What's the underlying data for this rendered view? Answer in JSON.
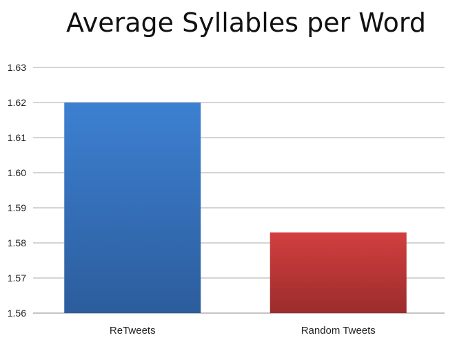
{
  "chart_data": {
    "type": "bar",
    "title": "Average Syllables per Word",
    "xlabel": "",
    "ylabel": "",
    "categories": [
      "ReTweets",
      "Random Tweets"
    ],
    "values": [
      1.62,
      1.583
    ],
    "ylim": [
      1.56,
      1.63
    ],
    "yticks": [
      "1.56",
      "1.57",
      "1.58",
      "1.59",
      "1.60",
      "1.61",
      "1.62",
      "1.63"
    ],
    "grid": true,
    "legend": "none",
    "bar_colors": [
      {
        "top": "#3d80d2",
        "bottom": "#2c5d9c"
      },
      {
        "top": "#d23f3f",
        "bottom": "#9c2c2c"
      }
    ]
  }
}
